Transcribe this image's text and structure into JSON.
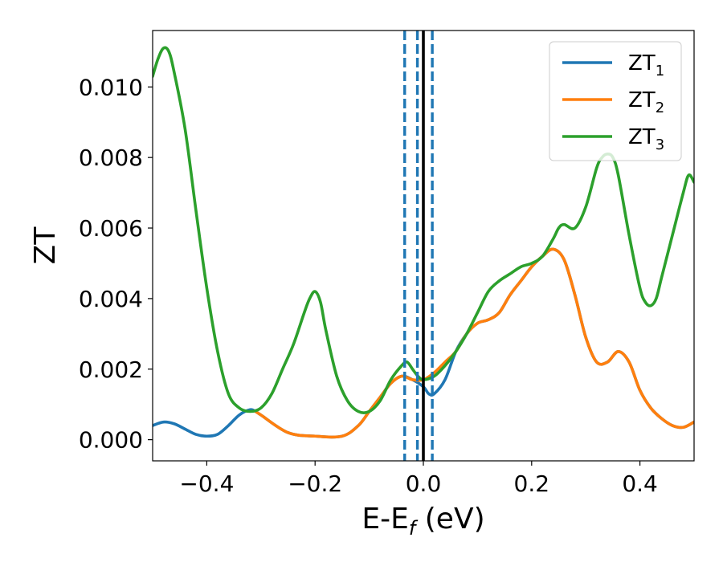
{
  "chart_data": {
    "type": "line",
    "xlabel_main": "E-E",
    "xlabel_sub": "f",
    "xlabel_unit": " (eV)",
    "ylabel": "ZT",
    "xlim": [
      -0.5,
      0.5
    ],
    "ylim": [
      -0.0006,
      0.0116
    ],
    "x_ticks": [
      -0.4,
      -0.2,
      0.0,
      0.2,
      0.4
    ],
    "x_tick_labels": [
      "−0.4",
      "−0.2",
      "0.0",
      "0.2",
      "0.4"
    ],
    "y_ticks": [
      0.0,
      0.002,
      0.004,
      0.006,
      0.008,
      0.01
    ],
    "y_tick_labels": [
      "0.000",
      "0.002",
      "0.004",
      "0.006",
      "0.008",
      "0.010"
    ],
    "grid": false,
    "legend_position": "top-right",
    "series": [
      {
        "name": "ZT",
        "name_sub": "1",
        "color": "#1f77b4",
        "x": [
          -0.5,
          -0.48,
          -0.46,
          -0.44,
          -0.42,
          -0.4,
          -0.38,
          -0.36,
          -0.34,
          -0.32,
          -0.31,
          -0.3,
          -0.25,
          -0.2,
          -0.15,
          -0.12,
          -0.1,
          -0.08,
          -0.06,
          -0.04,
          -0.02,
          0.0,
          0.01,
          0.02,
          0.04,
          0.06,
          0.08,
          0.1,
          0.12,
          0.14,
          0.16,
          0.18,
          0.2,
          0.22,
          0.24,
          0.26,
          0.28,
          0.3,
          0.32,
          0.34,
          0.36,
          0.38,
          0.4,
          0.42,
          0.44,
          0.46,
          0.48,
          0.5
        ],
        "values": [
          0.0004,
          0.0005,
          0.00045,
          0.0003,
          0.00015,
          0.0001,
          0.00015,
          0.0004,
          0.0007,
          0.00085,
          0.0008,
          0.0007,
          0.0002,
          0.0001,
          0.0001,
          0.0004,
          0.0008,
          0.0012,
          0.0016,
          0.0018,
          0.0017,
          0.0015,
          0.0013,
          0.0013,
          0.0017,
          0.0025,
          0.003,
          0.0033,
          0.0034,
          0.0036,
          0.0041,
          0.0045,
          0.0049,
          0.0052,
          0.0054,
          0.0051,
          0.0041,
          0.0029,
          0.0022,
          0.0022,
          0.0025,
          0.0022,
          0.0014,
          0.0009,
          0.0006,
          0.0004,
          0.00035,
          0.0005
        ]
      },
      {
        "name": "ZT",
        "name_sub": "2",
        "color": "#ff7f0e",
        "x": [
          -0.31,
          -0.3,
          -0.25,
          -0.2,
          -0.15,
          -0.12,
          -0.1,
          -0.08,
          -0.06,
          -0.04,
          -0.02,
          0.0,
          0.02,
          0.04,
          0.06,
          0.08,
          0.1,
          0.12,
          0.14,
          0.16,
          0.18,
          0.2,
          0.22,
          0.24,
          0.26,
          0.28,
          0.3,
          0.32,
          0.34,
          0.36,
          0.38,
          0.4,
          0.42,
          0.44,
          0.46,
          0.48,
          0.5
        ],
        "values": [
          0.0008,
          0.0007,
          0.0002,
          0.0001,
          0.0001,
          0.0004,
          0.0008,
          0.0012,
          0.0016,
          0.0018,
          0.0017,
          0.0017,
          0.0019,
          0.0022,
          0.0025,
          0.003,
          0.0033,
          0.0034,
          0.0036,
          0.0041,
          0.0045,
          0.0049,
          0.0052,
          0.0054,
          0.0051,
          0.0041,
          0.0029,
          0.0022,
          0.0022,
          0.0025,
          0.0022,
          0.0014,
          0.0009,
          0.0006,
          0.0004,
          0.00035,
          0.0005
        ]
      },
      {
        "name": "ZT",
        "name_sub": "3",
        "color": "#2ca02c",
        "x": [
          -0.5,
          -0.49,
          -0.48,
          -0.47,
          -0.46,
          -0.44,
          -0.42,
          -0.4,
          -0.38,
          -0.36,
          -0.34,
          -0.32,
          -0.3,
          -0.28,
          -0.26,
          -0.24,
          -0.22,
          -0.21,
          -0.2,
          -0.19,
          -0.18,
          -0.16,
          -0.14,
          -0.12,
          -0.1,
          -0.08,
          -0.06,
          -0.04,
          -0.03,
          -0.02,
          -0.01,
          0.0,
          0.02,
          0.04,
          0.06,
          0.08,
          0.1,
          0.12,
          0.14,
          0.16,
          0.18,
          0.2,
          0.22,
          0.24,
          0.25,
          0.26,
          0.28,
          0.3,
          0.32,
          0.33,
          0.34,
          0.35,
          0.36,
          0.38,
          0.4,
          0.41,
          0.42,
          0.43,
          0.44,
          0.46,
          0.48,
          0.49,
          0.5
        ],
        "values": [
          0.0103,
          0.0108,
          0.0111,
          0.011,
          0.0104,
          0.0088,
          0.0065,
          0.0043,
          0.0025,
          0.0013,
          0.0009,
          0.0008,
          0.0009,
          0.0013,
          0.002,
          0.0027,
          0.0036,
          0.004,
          0.0042,
          0.0039,
          0.0031,
          0.0018,
          0.0011,
          0.0008,
          0.0008,
          0.0011,
          0.0017,
          0.0021,
          0.0022,
          0.002,
          0.0018,
          0.0017,
          0.0018,
          0.0021,
          0.0025,
          0.003,
          0.0036,
          0.0042,
          0.0045,
          0.0047,
          0.0049,
          0.005,
          0.0052,
          0.0057,
          0.006,
          0.0061,
          0.006,
          0.0066,
          0.0077,
          0.008,
          0.0081,
          0.008,
          0.0075,
          0.0058,
          0.0043,
          0.0039,
          0.0038,
          0.004,
          0.0046,
          0.0058,
          0.007,
          0.0075,
          0.0073
        ]
      }
    ],
    "vlines": [
      {
        "x": -0.0345,
        "style": "dashed",
        "color": "#1f77b4"
      },
      {
        "x": -0.011,
        "style": "dashed",
        "color": "#1f77b4"
      },
      {
        "x": 0.0,
        "style": "solid",
        "color": "#000000"
      },
      {
        "x": 0.0165,
        "style": "dashed",
        "color": "#1f77b4"
      }
    ]
  }
}
